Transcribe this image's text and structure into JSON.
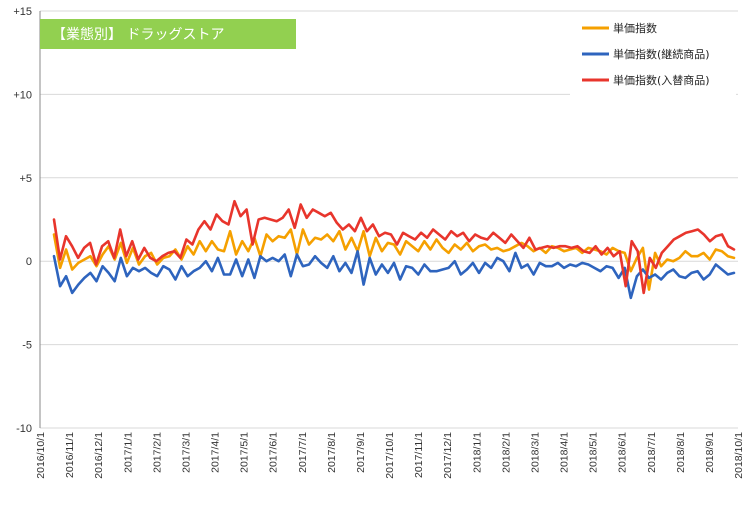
{
  "chart_data": {
    "type": "line",
    "title": "【業態別】 ドラッグストア",
    "title_bg_color": "#92D050",
    "ylim": [
      -10,
      15
    ],
    "y_ticks": [
      "+15",
      "+10",
      "+5",
      "0",
      "-5",
      "-10"
    ],
    "y_tick_values": [
      15,
      10,
      5,
      0,
      -5,
      -10
    ],
    "x_tick_labels": [
      "2016/10/1",
      "2016/11/1",
      "2016/12/1",
      "2017/1/1",
      "2017/2/1",
      "2017/3/1",
      "2017/4/1",
      "2017/5/1",
      "2017/6/1",
      "2017/7/1",
      "2017/8/1",
      "2017/9/1",
      "2017/10/1",
      "2017/11/1",
      "2017/12/1",
      "2018/1/1",
      "2018/2/1",
      "2018/3/1",
      "2018/4/1",
      "2018/5/1",
      "2018/6/1",
      "2018/7/1",
      "2018/8/1",
      "2018/9/1",
      "2018/10/1"
    ],
    "legend_position": "top-right",
    "grid": "horizontal",
    "x_start": "2016/10/1",
    "x_end": "2018/10/1",
    "series": [
      {
        "name": "単価指数",
        "color": "#F5A000",
        "values": [
          1.6,
          -0.4,
          0.7,
          -0.5,
          -0.1,
          0.1,
          0.3,
          -0.3,
          0.4,
          0.9,
          0.1,
          1.1,
          -0.1,
          0.8,
          -0.2,
          0.3,
          0.5,
          -0.2,
          0.2,
          0.3,
          0.7,
          0.1,
          0.9,
          0.4,
          1.2,
          0.6,
          1.2,
          0.7,
          0.6,
          1.8,
          0.4,
          1.2,
          0.6,
          1.4,
          0.3,
          1.6,
          1.2,
          1.5,
          1.4,
          1.9,
          0.4,
          1.9,
          1.0,
          1.4,
          1.3,
          1.6,
          1.2,
          1.8,
          0.7,
          1.4,
          0.6,
          1.8,
          0.3,
          1.4,
          0.6,
          1.1,
          1.0,
          0.4,
          1.2,
          0.9,
          0.6,
          1.2,
          0.7,
          1.3,
          0.8,
          0.5,
          1.0,
          0.7,
          1.1,
          0.6,
          0.9,
          1.0,
          0.7,
          0.8,
          0.6,
          0.7,
          0.9,
          1.1,
          0.9,
          0.6,
          0.8,
          0.5,
          0.9,
          0.8,
          0.6,
          0.7,
          0.8,
          0.5,
          0.8,
          0.7,
          0.6,
          0.4,
          0.8,
          0.6,
          0.5,
          -0.6,
          0.2,
          0.8,
          -1.7,
          0.5,
          -0.3,
          0.1,
          0.0,
          0.2,
          0.6,
          0.3,
          0.3,
          0.5,
          0.1,
          0.7,
          0.6,
          0.3,
          0.2
        ]
      },
      {
        "name": "単価指数(継続商品)",
        "color": "#2E64BE",
        "values": [
          0.3,
          -1.5,
          -0.9,
          -1.9,
          -1.4,
          -1.0,
          -0.7,
          -1.2,
          -0.3,
          -0.7,
          -1.2,
          0.2,
          -0.9,
          -0.4,
          -0.6,
          -0.4,
          -0.7,
          -0.9,
          -0.3,
          -0.5,
          -1.1,
          -0.3,
          -0.9,
          -0.6,
          -0.4,
          0.0,
          -0.6,
          0.2,
          -0.8,
          -0.8,
          0.1,
          -0.9,
          0.1,
          -1.0,
          0.3,
          0.0,
          0.2,
          0.0,
          0.4,
          -0.9,
          0.4,
          -0.3,
          -0.2,
          0.3,
          -0.1,
          -0.4,
          0.3,
          -0.6,
          -0.1,
          -0.7,
          0.6,
          -1.4,
          0.2,
          -0.8,
          -0.2,
          -0.7,
          -0.1,
          -1.1,
          -0.3,
          -0.4,
          -0.8,
          -0.2,
          -0.6,
          -0.6,
          -0.5,
          -0.4,
          0.0,
          -0.8,
          -0.5,
          -0.1,
          -0.7,
          -0.1,
          -0.4,
          0.2,
          0.0,
          -0.6,
          0.5,
          -0.4,
          -0.2,
          -0.8,
          -0.1,
          -0.3,
          -0.3,
          -0.1,
          -0.4,
          -0.2,
          -0.3,
          -0.1,
          -0.2,
          -0.4,
          -0.6,
          -0.3,
          -0.4,
          -1.0,
          -0.4,
          -2.2,
          -0.9,
          -0.5,
          -1.0,
          -0.8,
          -1.1,
          -0.7,
          -0.5,
          -0.9,
          -1.0,
          -0.7,
          -0.6,
          -1.1,
          -0.8,
          -0.2,
          -0.5,
          -0.8,
          -0.7
        ]
      },
      {
        "name": "単価指数(入替商品)",
        "color": "#E8352C",
        "values": [
          2.5,
          0.1,
          1.5,
          0.9,
          0.2,
          0.8,
          1.1,
          -0.2,
          0.9,
          1.2,
          0.2,
          1.9,
          0.3,
          1.2,
          0.1,
          0.8,
          0.2,
          0.0,
          0.3,
          0.5,
          0.6,
          0.2,
          1.3,
          1.0,
          1.9,
          2.4,
          1.9,
          2.8,
          2.4,
          2.2,
          3.6,
          2.7,
          3.1,
          1.0,
          2.5,
          2.6,
          2.5,
          2.4,
          2.6,
          3.1,
          2.0,
          3.4,
          2.6,
          3.1,
          2.9,
          2.7,
          2.9,
          2.3,
          1.9,
          2.2,
          1.8,
          2.6,
          1.8,
          2.2,
          1.5,
          1.7,
          1.6,
          1.0,
          1.7,
          1.5,
          1.3,
          1.7,
          1.4,
          1.9,
          1.6,
          1.3,
          1.8,
          1.5,
          1.7,
          1.2,
          1.6,
          1.4,
          1.3,
          1.7,
          1.4,
          1.1,
          1.6,
          1.2,
          0.8,
          1.4,
          0.7,
          0.8,
          0.9,
          0.8,
          0.9,
          0.9,
          0.8,
          0.9,
          0.6,
          0.5,
          0.9,
          0.4,
          0.8,
          0.3,
          0.6,
          -1.5,
          1.2,
          0.6,
          -1.9,
          0.2,
          -0.4,
          0.5,
          0.9,
          1.3,
          1.5,
          1.7,
          1.8,
          1.9,
          1.6,
          1.2,
          1.5,
          1.6,
          0.9,
          0.7
        ]
      }
    ]
  }
}
